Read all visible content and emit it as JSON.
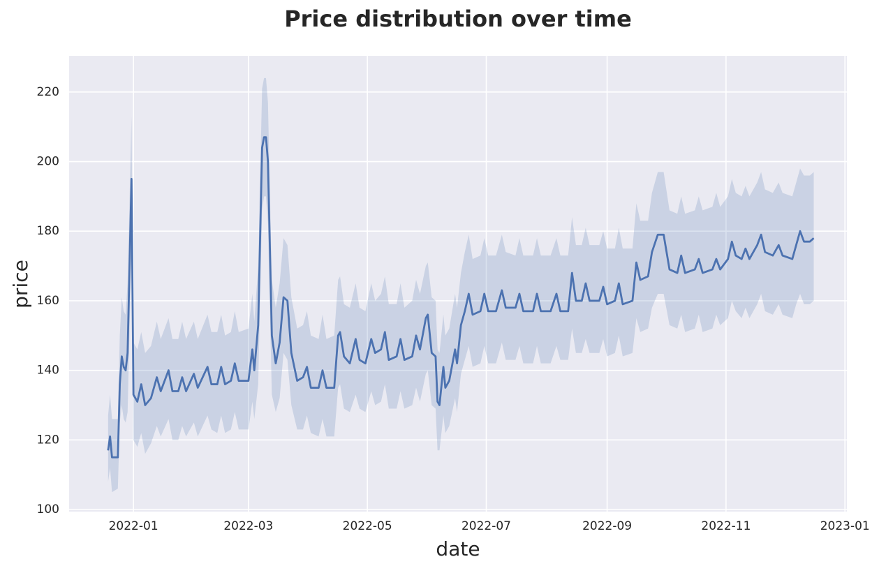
{
  "chart_data": {
    "type": "line",
    "title": "Price distribution over time",
    "x_label": "date",
    "y_label": "price",
    "color": "#4c72b0",
    "grid": true,
    "xlim": [
      "2021-11-29",
      "2023-01-02"
    ],
    "xticks": [
      {
        "value": "2022-01-01",
        "label": "2022-01"
      },
      {
        "value": "2022-03-01",
        "label": "2022-03"
      },
      {
        "value": "2022-05-01",
        "label": "2022-05"
      },
      {
        "value": "2022-07-01",
        "label": "2022-07"
      },
      {
        "value": "2022-09-01",
        "label": "2022-09"
      },
      {
        "value": "2022-11-01",
        "label": "2022-11"
      },
      {
        "value": "2023-01-01",
        "label": "2023-01"
      }
    ],
    "ylim": [
      99.4,
      230.4
    ],
    "yticks": [
      100,
      120,
      140,
      160,
      180,
      200,
      220
    ],
    "x": [
      "2021-12-19",
      "2021-12-20",
      "2021-12-21",
      "2021-12-24",
      "2021-12-25",
      "2021-12-26",
      "2021-12-27",
      "2021-12-28",
      "2021-12-29",
      "2021-12-31",
      "2022-01-01",
      "2022-01-03",
      "2022-01-05",
      "2022-01-07",
      "2022-01-10",
      "2022-01-13",
      "2022-01-15",
      "2022-01-19",
      "2022-01-21",
      "2022-01-24",
      "2022-01-26",
      "2022-01-28",
      "2022-02-01",
      "2022-02-03",
      "2022-02-08",
      "2022-02-10",
      "2022-02-13",
      "2022-02-15",
      "2022-02-17",
      "2022-02-20",
      "2022-02-22",
      "2022-02-24",
      "2022-03-01",
      "2022-03-03",
      "2022-03-04",
      "2022-03-06",
      "2022-03-08",
      "2022-03-09",
      "2022-03-10",
      "2022-03-11",
      "2022-03-13",
      "2022-03-15",
      "2022-03-17",
      "2022-03-19",
      "2022-03-21",
      "2022-03-23",
      "2022-03-26",
      "2022-03-29",
      "2022-03-31",
      "2022-04-02",
      "2022-04-06",
      "2022-04-08",
      "2022-04-10",
      "2022-04-14",
      "2022-04-16",
      "2022-04-17",
      "2022-04-19",
      "2022-04-22",
      "2022-04-25",
      "2022-04-27",
      "2022-04-30",
      "2022-05-03",
      "2022-05-05",
      "2022-05-08",
      "2022-05-10",
      "2022-05-12",
      "2022-05-16",
      "2022-05-18",
      "2022-05-20",
      "2022-05-24",
      "2022-05-26",
      "2022-05-28",
      "2022-05-31",
      "2022-06-01",
      "2022-06-03",
      "2022-06-05",
      "2022-06-06",
      "2022-06-07",
      "2022-06-09",
      "2022-06-10",
      "2022-06-12",
      "2022-06-15",
      "2022-06-16",
      "2022-06-18",
      "2022-06-20",
      "2022-06-22",
      "2022-06-24",
      "2022-06-28",
      "2022-06-30",
      "2022-07-02",
      "2022-07-06",
      "2022-07-09",
      "2022-07-11",
      "2022-07-16",
      "2022-07-18",
      "2022-07-20",
      "2022-07-25",
      "2022-07-27",
      "2022-07-29",
      "2022-08-03",
      "2022-08-06",
      "2022-08-08",
      "2022-08-12",
      "2022-08-14",
      "2022-08-16",
      "2022-08-19",
      "2022-08-21",
      "2022-08-23",
      "2022-08-28",
      "2022-08-30",
      "2022-09-01",
      "2022-09-05",
      "2022-09-07",
      "2022-09-09",
      "2022-09-14",
      "2022-09-16",
      "2022-09-18",
      "2022-09-22",
      "2022-09-24",
      "2022-09-27",
      "2022-09-30",
      "2022-10-03",
      "2022-10-07",
      "2022-10-09",
      "2022-10-11",
      "2022-10-16",
      "2022-10-18",
      "2022-10-20",
      "2022-10-25",
      "2022-10-27",
      "2022-10-29",
      "2022-11-02",
      "2022-11-04",
      "2022-11-06",
      "2022-11-09",
      "2022-11-11",
      "2022-11-13",
      "2022-11-17",
      "2022-11-19",
      "2022-11-21",
      "2022-11-25",
      "2022-11-28",
      "2022-11-30",
      "2022-12-05",
      "2022-12-07",
      "2022-12-09",
      "2022-12-11",
      "2022-12-14",
      "2022-12-16"
    ],
    "values": [
      117,
      121,
      115,
      115,
      136,
      144,
      141,
      140,
      145,
      195,
      133,
      131,
      136,
      130,
      132,
      138,
      134,
      140,
      134,
      134,
      138,
      134,
      139,
      135,
      141,
      136,
      136,
      141,
      136,
      137,
      142,
      137,
      137,
      146,
      140,
      153,
      204,
      207,
      207,
      200,
      150,
      142,
      148,
      161,
      160,
      145,
      137,
      138,
      141,
      135,
      135,
      140,
      135,
      135,
      150,
      151,
      144,
      142,
      149,
      143,
      142,
      149,
      145,
      146,
      151,
      143,
      144,
      149,
      143,
      144,
      150,
      146,
      155,
      156,
      145,
      144,
      131,
      130,
      141,
      135,
      137,
      146,
      142,
      153,
      157,
      162,
      156,
      157,
      162,
      157,
      157,
      163,
      158,
      158,
      162,
      157,
      157,
      162,
      157,
      157,
      162,
      157,
      157,
      168,
      160,
      160,
      165,
      160,
      160,
      164,
      159,
      160,
      165,
      159,
      160,
      171,
      166,
      167,
      174,
      179,
      179,
      169,
      168,
      173,
      168,
      169,
      172,
      168,
      169,
      172,
      169,
      172,
      177,
      173,
      172,
      175,
      172,
      176,
      179,
      174,
      173,
      176,
      173,
      172,
      176,
      180,
      177,
      177,
      178
    ],
    "lower": [
      108,
      112,
      105,
      106,
      125,
      130,
      126,
      125,
      128,
      175,
      120,
      118,
      122,
      116,
      119,
      124,
      121,
      126,
      120,
      120,
      124,
      121,
      125,
      121,
      127,
      123,
      122,
      127,
      122,
      123,
      128,
      123,
      123,
      131,
      126,
      136,
      186,
      190,
      190,
      182,
      133,
      128,
      132,
      145,
      143,
      130,
      123,
      123,
      127,
      122,
      121,
      126,
      121,
      121,
      135,
      136,
      129,
      128,
      133,
      129,
      128,
      134,
      130,
      131,
      136,
      129,
      129,
      134,
      129,
      130,
      135,
      131,
      139,
      140,
      130,
      129,
      117,
      117,
      127,
      122,
      124,
      132,
      128,
      139,
      143,
      147,
      141,
      142,
      147,
      142,
      142,
      148,
      143,
      143,
      147,
      142,
      142,
      147,
      142,
      142,
      147,
      143,
      143,
      152,
      145,
      145,
      149,
      145,
      145,
      149,
      144,
      145,
      150,
      144,
      145,
      155,
      151,
      152,
      158,
      162,
      162,
      153,
      152,
      156,
      151,
      152,
      156,
      151,
      152,
      156,
      153,
      155,
      160,
      157,
      155,
      158,
      155,
      159,
      162,
      157,
      156,
      159,
      156,
      155,
      159,
      162,
      159,
      159,
      160
    ],
    "upper": [
      127,
      133,
      126,
      126,
      150,
      161,
      157,
      156,
      165,
      213,
      148,
      146,
      151,
      145,
      147,
      154,
      149,
      155,
      149,
      149,
      154,
      149,
      154,
      149,
      156,
      151,
      151,
      156,
      150,
      151,
      157,
      151,
      152,
      162,
      154,
      170,
      221,
      224,
      224,
      217,
      166,
      158,
      165,
      178,
      176,
      161,
      152,
      153,
      157,
      150,
      149,
      156,
      149,
      150,
      166,
      167,
      159,
      158,
      165,
      158,
      157,
      165,
      160,
      162,
      167,
      159,
      159,
      165,
      158,
      160,
      166,
      162,
      170,
      171,
      161,
      160,
      146,
      145,
      156,
      150,
      152,
      162,
      158,
      168,
      174,
      179,
      172,
      173,
      178,
      173,
      173,
      179,
      174,
      173,
      178,
      173,
      173,
      178,
      173,
      173,
      178,
      173,
      173,
      184,
      176,
      176,
      181,
      176,
      176,
      180,
      175,
      175,
      181,
      175,
      175,
      188,
      183,
      183,
      191,
      197,
      197,
      186,
      185,
      190,
      185,
      186,
      190,
      186,
      187,
      191,
      187,
      190,
      195,
      191,
      190,
      193,
      190,
      194,
      197,
      192,
      191,
      194,
      191,
      190,
      194,
      198,
      196,
      196,
      197
    ]
  }
}
